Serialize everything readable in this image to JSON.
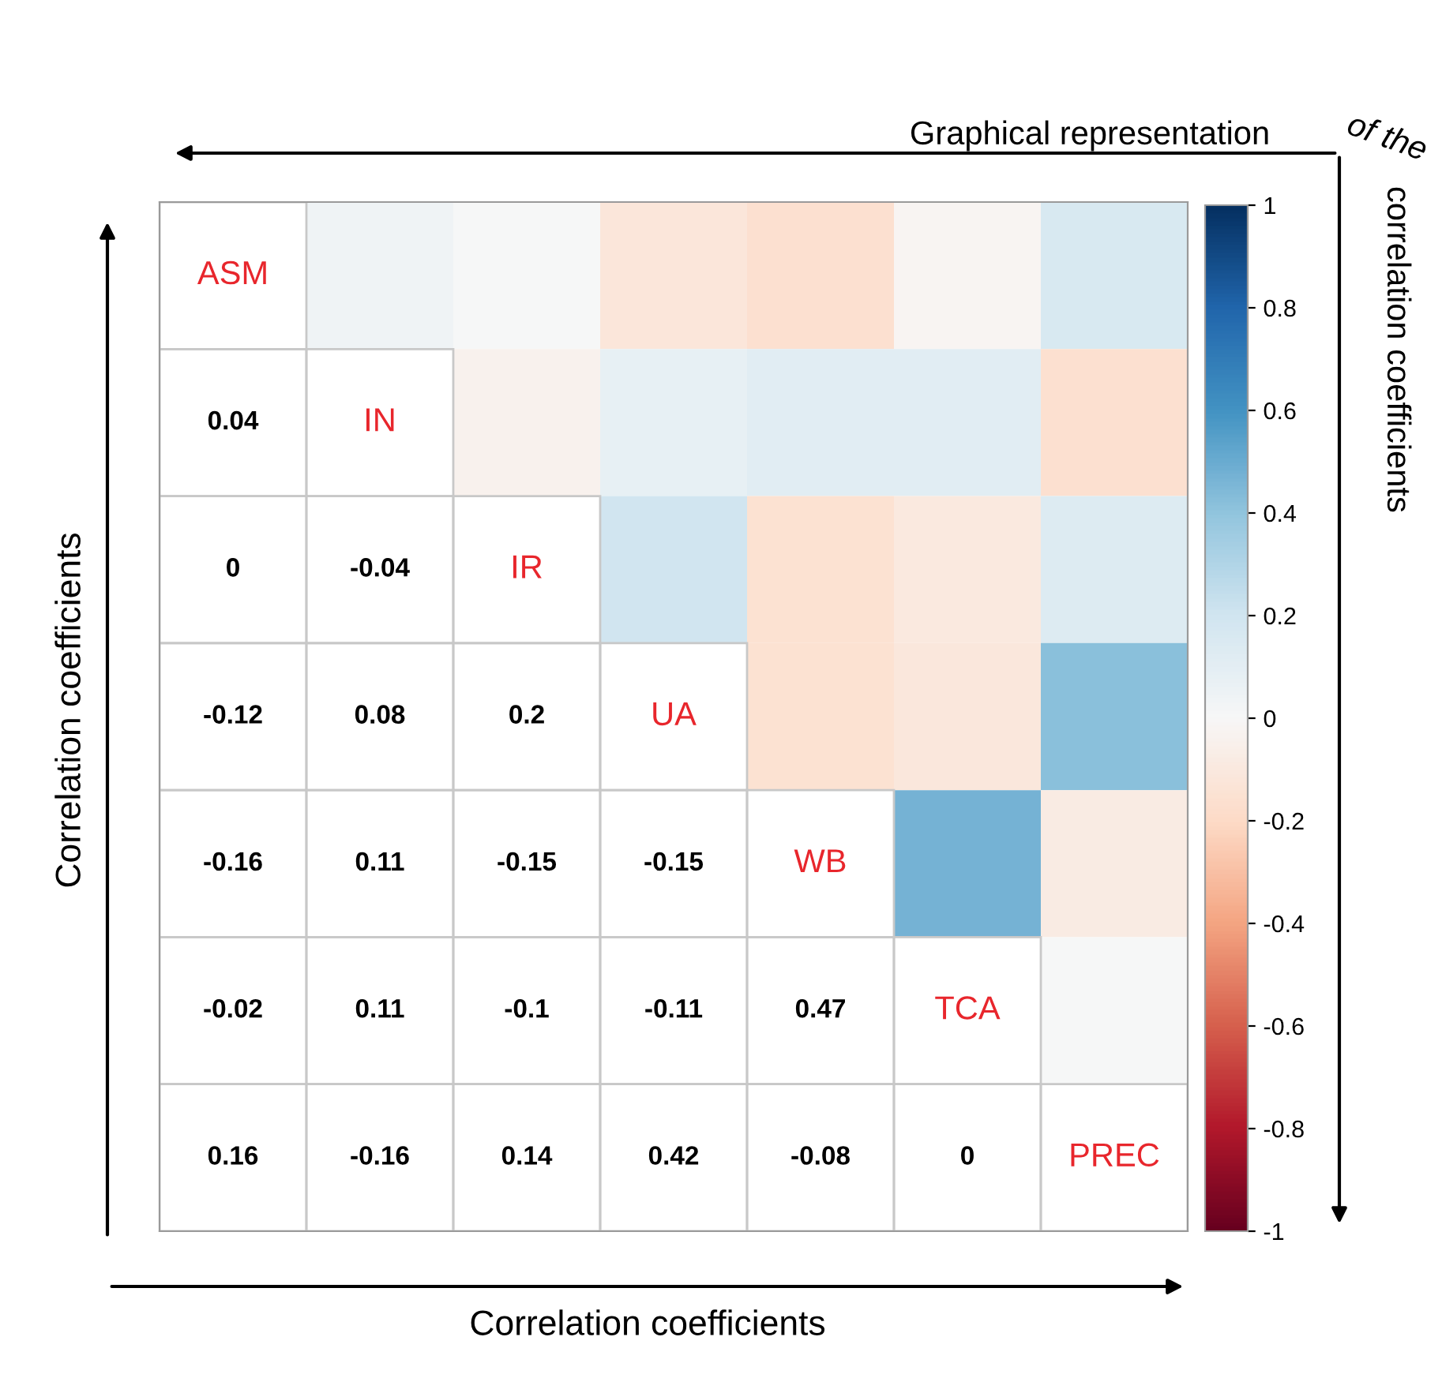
{
  "chart_data": {
    "type": "heatmap",
    "annotations": [
      "Graphical representation",
      "of the",
      "correlation coefficients",
      "Correlation coefficients",
      "Correlation coefficients"
    ],
    "categories": [
      null,
      null,
      null,
      null,
      null,
      null,
      null
    ],
    "y_categories": [
      null,
      null,
      null,
      null,
      null,
      null,
      "PREC"
    ],
    "cells": [
      [
        null,
        0.04,
        0,
        -0.12,
        -0.16,
        -0.02,
        0.16
      ],
      [
        null,
        null,
        -0.04,
        0.08,
        0.11,
        0.11,
        -0.16
      ],
      [
        null,
        null,
        null,
        0.2,
        -0.15,
        -0.1,
        0.14
      ],
      [
        null,
        null,
        null,
        null,
        -0.15,
        -0.11,
        0.42
      ],
      [
        null,
        null,
        null,
        null,
        null,
        0.47,
        -0.08
      ],
      [
        null,
        null,
        null,
        null,
        null,
        null,
        0
      ],
      [
        null,
        null,
        null,
        null,
        null,
        null,
        null
      ]
    ],
    "cell_labels": [
      [
        "ASM",
        null,
        null,
        null,
        null,
        null,
        null
      ],
      [
        "0.04",
        "IN",
        null,
        null,
        null,
        null,
        null
      ],
      [
        "0",
        "-0.04",
        "IR",
        null,
        null,
        null,
        null
      ],
      [
        "-0.12",
        "0.08",
        "0.2",
        "UA",
        null,
        null,
        null
      ],
      [
        "-0.16",
        "0.11",
        "-0.15",
        "-0.15",
        "WB",
        null,
        null
      ],
      [
        "-0.02",
        "0.11",
        "-0.1",
        "-0.11",
        "0.47",
        "TCA",
        null
      ],
      [
        "0.16",
        "-0.16",
        "0.14",
        "0.42",
        "-0.08",
        "0",
        null
      ]
    ],
    "clim": [
      -1,
      1
    ],
    "cticks": [
      -1,
      -0.8,
      -0.6,
      -0.4,
      -0.2,
      0,
      0.2,
      0.4,
      0.6,
      0.8,
      1
    ]
  }
}
